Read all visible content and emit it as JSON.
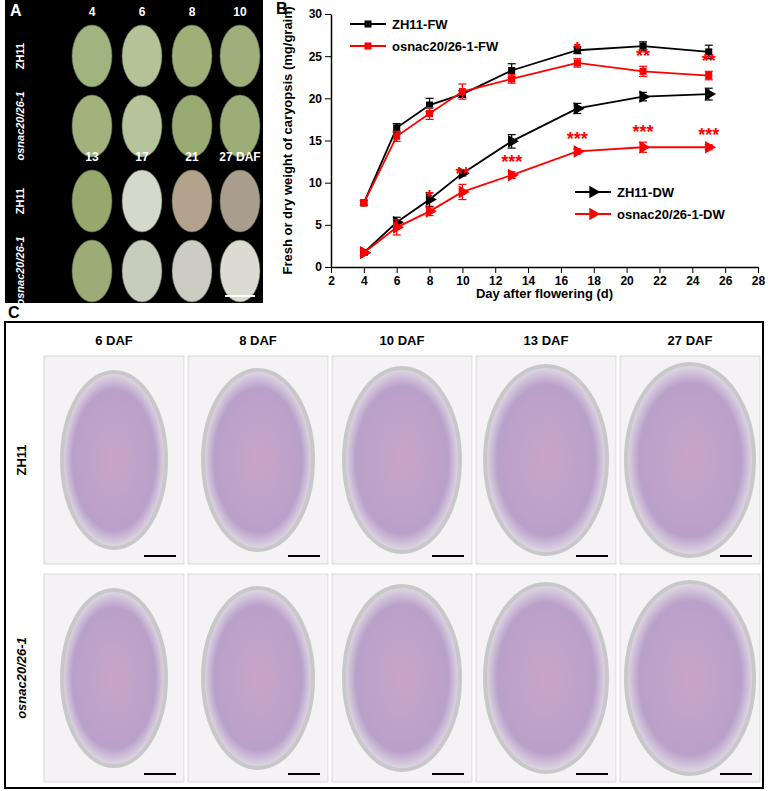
{
  "panel_labels": [
    "A",
    "B",
    "C"
  ],
  "panel_a": {
    "columns": [
      "4",
      "6",
      "8",
      "10",
      "13",
      "17",
      "21",
      "27 DAF"
    ],
    "rows": [
      "ZH11",
      "osnac20/26-1"
    ]
  },
  "chart_data": {
    "type": "line",
    "x_label": "Day after flowering (d)",
    "y_label": "Fresh or dry weight of caryopsis (mg/grain)",
    "x": [
      4,
      6,
      8,
      10,
      13,
      17,
      21,
      25
    ],
    "xlim": [
      2,
      28
    ],
    "xticks": [
      2,
      4,
      6,
      8,
      10,
      12,
      14,
      16,
      18,
      20,
      22,
      24,
      26,
      28
    ],
    "ylim": [
      0,
      30
    ],
    "yticks": [
      0,
      5,
      10,
      15,
      20,
      25,
      30
    ],
    "series": [
      {
        "name": "ZH11-FW",
        "color": "#000000",
        "marker": "square",
        "legend": "upper left",
        "values": [
          7.6,
          16.5,
          19.2,
          20.5,
          23.3,
          25.7,
          26.2,
          25.5
        ],
        "errors": [
          0.3,
          0.5,
          0.8,
          0.4,
          0.8,
          0.4,
          0.5,
          0.8
        ],
        "significance": [
          null,
          null,
          null,
          null,
          null,
          null,
          null,
          null
        ]
      },
      {
        "name": "osnac20/26-1-FW",
        "color": "#ff0000",
        "marker": "square",
        "legend": "upper left",
        "values": [
          7.6,
          15.5,
          18.2,
          20.8,
          22.3,
          24.2,
          23.2,
          22.7
        ],
        "errors": [
          0.3,
          0.6,
          0.7,
          0.9,
          0.5,
          0.5,
          0.6,
          0.5
        ],
        "significance": [
          null,
          null,
          null,
          null,
          null,
          "*",
          "**",
          "**"
        ]
      },
      {
        "name": "ZH11-DW",
        "color": "#000000",
        "marker": "triangle-right",
        "legend": "lower right",
        "values": [
          1.7,
          5.3,
          8.0,
          11.1,
          14.9,
          18.8,
          20.2,
          20.5
        ],
        "errors": [
          0.3,
          0.6,
          0.8,
          0.3,
          0.8,
          0.6,
          0.5,
          0.7
        ],
        "significance": [
          null,
          null,
          null,
          null,
          null,
          null,
          null,
          null
        ]
      },
      {
        "name": "osnac20/26-1-DW",
        "color": "#ff0000",
        "marker": "triangle-right",
        "legend": "lower right",
        "values": [
          1.7,
          4.7,
          6.6,
          8.9,
          10.9,
          13.7,
          14.2,
          14.2
        ],
        "errors": [
          0.3,
          0.9,
          0.5,
          0.9,
          0.4,
          0.3,
          0.6,
          0.3
        ],
        "significance": [
          null,
          null,
          "*",
          "**",
          "***",
          "***",
          "***",
          "***"
        ]
      }
    ]
  },
  "panel_c": {
    "columns": [
      "6 DAF",
      "8 DAF",
      "10 DAF",
      "13 DAF",
      "27 DAF"
    ],
    "rows": [
      "ZH11",
      "osnac20/26-1"
    ]
  }
}
